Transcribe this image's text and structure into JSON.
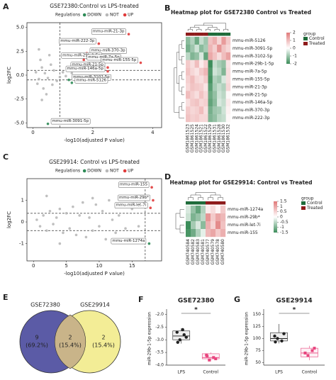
{
  "chart_data": [
    {
      "panel": "A",
      "type": "scatter",
      "title": "GSE72380:Control vs LPS-treated",
      "legend_title": "Regulations",
      "x_label": "-log10(adjusted P value)",
      "y_label": "log2FC",
      "xlim": [
        -0.2,
        4.3
      ],
      "ylim": [
        -5.5,
        5.5
      ],
      "xticks": [
        0,
        2,
        4
      ],
      "yticks": [
        {
          "value": -5,
          "label": "-5.0"
        },
        {
          "value": -2.5,
          "label": "-2.5"
        },
        {
          "value": 0,
          "label": "0.0"
        },
        {
          "value": 2.5,
          "label": "2.5"
        },
        {
          "value": 5,
          "label": "5.0"
        }
      ],
      "threshold_x": 0.9,
      "threshold_y": [
        -0.5,
        0.5
      ],
      "series": [
        {
          "name": "DOWN",
          "color": "#2e8b57",
          "x": [
            1.2,
            1.3,
            0.5
          ],
          "values": [
            -0.5,
            -0.8,
            -5.1
          ],
          "labels": [
            "mmu-miR-3102-5p",
            "mmu-miR-5126",
            "mmu-miR-3091-5p"
          ]
        },
        {
          "name": "NOT",
          "color": "#b8b8b8",
          "x": [
            0.1,
            0.2,
            0.3,
            0.15,
            0.4,
            0.5,
            0.6,
            0.35,
            0.7,
            0.25,
            0.8,
            0.45,
            0.55,
            0.9,
            1.0,
            0.2,
            0.3,
            1.1,
            1.3,
            0.65
          ],
          "values": [
            0.3,
            -0.4,
            0.8,
            -0.9,
            0.2,
            -0.3,
            1.1,
            -1.4,
            0.5,
            1.6,
            -0.6,
            -2.0,
            2.1,
            -0.2,
            0.3,
            2.7,
            -2.6,
            -0.1,
            0.2,
            -1.0
          ]
        },
        {
          "name": "UP",
          "color": "#e03b3b",
          "x": [
            3.2,
            2.2,
            1.8,
            2.4,
            1.7,
            3.6,
            2.5,
            2.5
          ],
          "values": [
            4.3,
            3.3,
            2.3,
            1.8,
            1.6,
            1.3,
            0.8,
            0.4
          ],
          "labels": [
            "mmu-miR-21-3p",
            "mmu-miR-222-3p",
            "mmu-miR-370-3p",
            "mmu-miR-29b-1-5p",
            "mmu-miR-7a-5p",
            "mmu-miR-155-5p",
            "mmu-miR-21-5p",
            "mmu-miR-146a-5p"
          ]
        }
      ]
    },
    {
      "panel": "B",
      "type": "heatmap",
      "title": "Heatmap plot for GSE72380 Control vs Treated",
      "rows": [
        "mmu-miR-5126",
        "mmu-miR-3091-5p",
        "mmu-miR-3102-5p",
        "mmu-miR-29b-1-5p",
        "mmu-miR-7a-5p",
        "mmu-miR-155-5p",
        "mmu-miR-21-3p",
        "mmu-miR-21-5p",
        "mmu-miR-146a-5p",
        "mmu-miR-370-3p",
        "mmu-miR-222-3p"
      ],
      "columns": [
        "GSM1861523",
        "GSM1861525",
        "GSM1861524",
        "GSM1861521",
        "GSM1861522",
        "GSM1861529",
        "GSM1861531",
        "GSM1861528",
        "GSM1861530",
        "GSM1861532"
      ],
      "column_groups": [
        "Treated",
        "Treated",
        "Treated",
        "Treated",
        "Treated",
        "Control",
        "Control",
        "Control",
        "Control",
        "Control"
      ],
      "group_legend_title": "group",
      "group_names": [
        "Control",
        "Treated"
      ],
      "group_colors": [
        "#1e6b3a",
        "#8e1b1b"
      ],
      "colors": [
        "#3c8d5a",
        "#ffffff",
        "#e07a7a"
      ],
      "zlim": [
        -2,
        2
      ],
      "zticks": [
        2,
        1,
        0,
        -1,
        -2
      ],
      "values": [
        [
          -1.2,
          -0.8,
          -1.5,
          -0.6,
          -1.0,
          0.9,
          1.2,
          0.6,
          1.5,
          0.8
        ],
        [
          -1.4,
          -1.0,
          -0.5,
          -1.2,
          -0.9,
          1.1,
          0.7,
          1.6,
          0.9,
          0.6
        ],
        [
          -0.7,
          -1.3,
          -1.1,
          -0.4,
          -1.6,
          1.3,
          0.9,
          0.5,
          1.0,
          1.4
        ],
        [
          0.8,
          0.5,
          1.0,
          0.3,
          0.7,
          -2.0,
          -0.6,
          -0.9,
          -1.1,
          0.4
        ],
        [
          0.9,
          0.6,
          0.4,
          0.8,
          1.1,
          -1.8,
          -0.5,
          -0.7,
          -1.3,
          0.5
        ],
        [
          0.7,
          1.0,
          0.6,
          0.5,
          0.8,
          -1.9,
          -0.8,
          -1.0,
          -0.4,
          0.5
        ],
        [
          0.6,
          0.9,
          0.8,
          0.7,
          0.4,
          -1.7,
          -0.9,
          -0.6,
          -0.8,
          0.6
        ],
        [
          1.0,
          0.7,
          0.5,
          0.9,
          0.6,
          -1.5,
          -1.1,
          -0.5,
          -0.7,
          0.1
        ],
        [
          0.5,
          0.8,
          0.9,
          0.6,
          0.7,
          -1.6,
          -1.2,
          -0.4,
          -0.6,
          0.3
        ],
        [
          0.8,
          0.6,
          0.7,
          1.0,
          0.5,
          -1.4,
          -1.0,
          -0.9,
          -0.5,
          0.2
        ],
        [
          0.9,
          0.7,
          0.8,
          0.6,
          0.6,
          -1.3,
          -1.1,
          -0.7,
          -0.6,
          0.1
        ]
      ]
    },
    {
      "panel": "C",
      "type": "scatter",
      "title": "GSE29914: Control vs LPS-treated",
      "legend_title": "Regulations",
      "x_label": "-log10(adjusted P value)",
      "y_label": "log2FC",
      "xlim": [
        -1,
        19.5
      ],
      "ylim": [
        -1.8,
        2.0
      ],
      "xticks": [
        0,
        5,
        10,
        15
      ],
      "yticks": [
        -1,
        0,
        1
      ],
      "threshold_x": 17,
      "threshold_y": [
        -0.4,
        0.4
      ],
      "series": [
        {
          "name": "DOWN",
          "color": "#2e8b57",
          "x": [
            17.6
          ],
          "values": [
            -1.0
          ],
          "labels": [
            "mmu-miR-1274a"
          ]
        },
        {
          "name": "NOT",
          "color": "#b8b8b8",
          "x": [
            0.5,
            1,
            1.5,
            2,
            2.5,
            3,
            3.5,
            4,
            4.5,
            5,
            5.5,
            6,
            6.5,
            7,
            7.5,
            8,
            8.5,
            9,
            9.5,
            10,
            10.5,
            11,
            11.5,
            12,
            12.5,
            13,
            14,
            15,
            16,
            2,
            4,
            9
          ],
          "values": [
            0.1,
            -0.2,
            0.3,
            -0.4,
            0.5,
            -0.1,
            0.2,
            0.6,
            -0.5,
            0.4,
            -0.3,
            0.7,
            -0.6,
            0.3,
            0.9,
            -0.7,
            0.2,
            -0.4,
            0.8,
            -0.2,
            0.5,
            -0.8,
            1.0,
            0.1,
            -0.5,
            0.3,
            -0.3,
            0.6,
            -0.2,
            1.2,
            -1.0,
            1.1
          ]
        },
        {
          "name": "UP",
          "color": "#e03b3b",
          "x": [
            18.0,
            18.2,
            17.8
          ],
          "values": [
            1.6,
            1.0,
            0.65
          ],
          "labels": [
            "mmu-miR-155",
            "mmu-miR-29b*",
            "mmu-miR-let-7i"
          ]
        }
      ]
    },
    {
      "panel": "D",
      "type": "heatmap",
      "title": "Heatmap plot for GSE29914: Control vs Treated",
      "rows": [
        "mmu-miR-1274a",
        "mmu-miR-29b*",
        "mmu-miR-let-7i",
        "mmu-miR-155"
      ],
      "columns": [
        "GSM740584",
        "GSM740582",
        "GSM740583",
        "GSM740581",
        "GSM740577",
        "GSM740579",
        "GSM740578",
        "GSM740580"
      ],
      "column_groups": [
        "Control",
        "Control",
        "Control",
        "Control",
        "Treated",
        "Treated",
        "Treated",
        "Treated"
      ],
      "group_legend_title": "group",
      "group_names": [
        "Control",
        "Treated"
      ],
      "group_colors": [
        "#1e6b3a",
        "#8e1b1b"
      ],
      "colors": [
        "#3c8d5a",
        "#ffffff",
        "#e07a7a"
      ],
      "zlim": [
        -1.5,
        1.5
      ],
      "zticks": [
        1.5,
        1,
        0.5,
        0,
        -0.5,
        -1,
        -1.5
      ],
      "values": [
        [
          -0.3,
          -0.8,
          -1.2,
          -0.6,
          0.2,
          0.4,
          0.1,
          0.6
        ],
        [
          -0.4,
          -1.0,
          -0.8,
          -0.5,
          1.2,
          0.6,
          1.0,
          0.8
        ],
        [
          -1.5,
          -0.7,
          -0.3,
          -0.9,
          0.9,
          0.5,
          1.3,
          0.7
        ],
        [
          -1.4,
          -1.1,
          -0.6,
          -0.2,
          0.8,
          1.0,
          0.6,
          0.9
        ]
      ]
    },
    {
      "panel": "E",
      "type": "venn",
      "sets": [
        {
          "name": "GSE72380",
          "color": "#5b5ba6"
        },
        {
          "name": "GSE29914",
          "color": "#f1ea84"
        }
      ],
      "regions": [
        {
          "count": 9,
          "percent": "(69.2%)"
        },
        {
          "count": 2,
          "percent": "(15.4%)"
        },
        {
          "count": 2,
          "percent": "(15.4%)"
        }
      ]
    },
    {
      "panel": "F",
      "type": "box",
      "title": "GSE72380",
      "y_label": "miR-29b-1-5p expression",
      "categories": [
        "LPS",
        "Control"
      ],
      "colors": [
        "#222222",
        "#e8457e"
      ],
      "significance": "*",
      "ylim": [
        -4.0,
        -1.9
      ],
      "yticks": [
        {
          "value": -2,
          "label": "-2.0"
        },
        {
          "value": -2.5,
          "label": "-2.5"
        },
        {
          "value": -3,
          "label": "-3.0"
        },
        {
          "value": -3.5,
          "label": "-3.5"
        },
        {
          "value": -4,
          "label": "-4.0"
        }
      ],
      "stats": [
        {
          "min": -3.15,
          "q1": -3.0,
          "median": -2.85,
          "q3": -2.65,
          "max": -2.55
        },
        {
          "min": -3.85,
          "q1": -3.75,
          "median": -3.7,
          "q3": -3.55,
          "max": -3.5
        }
      ],
      "points": [
        [
          -2.7,
          -2.8,
          -3.0,
          -2.9,
          -3.1,
          -2.6
        ],
        [
          -3.6,
          -3.7,
          -3.8,
          -3.75,
          -3.65
        ]
      ]
    },
    {
      "panel": "G",
      "type": "box",
      "title": "GSE29914",
      "y_label": "miR-29b-1-5p expression",
      "categories": [
        "LPS",
        "Control"
      ],
      "colors": [
        "#222222",
        "#e8457e"
      ],
      "significance": "*",
      "ylim": [
        45,
        155
      ],
      "yticks": [
        50,
        75,
        100,
        125,
        150
      ],
      "stats": [
        {
          "min": 90,
          "q1": 95,
          "median": 100,
          "q3": 112,
          "max": 130
        },
        {
          "min": 55,
          "q1": 62,
          "median": 70,
          "q3": 80,
          "max": 85
        }
      ],
      "points": [
        [
          105,
          95,
          100,
          110,
          93
        ],
        [
          70,
          75,
          65,
          80
        ]
      ]
    }
  ]
}
